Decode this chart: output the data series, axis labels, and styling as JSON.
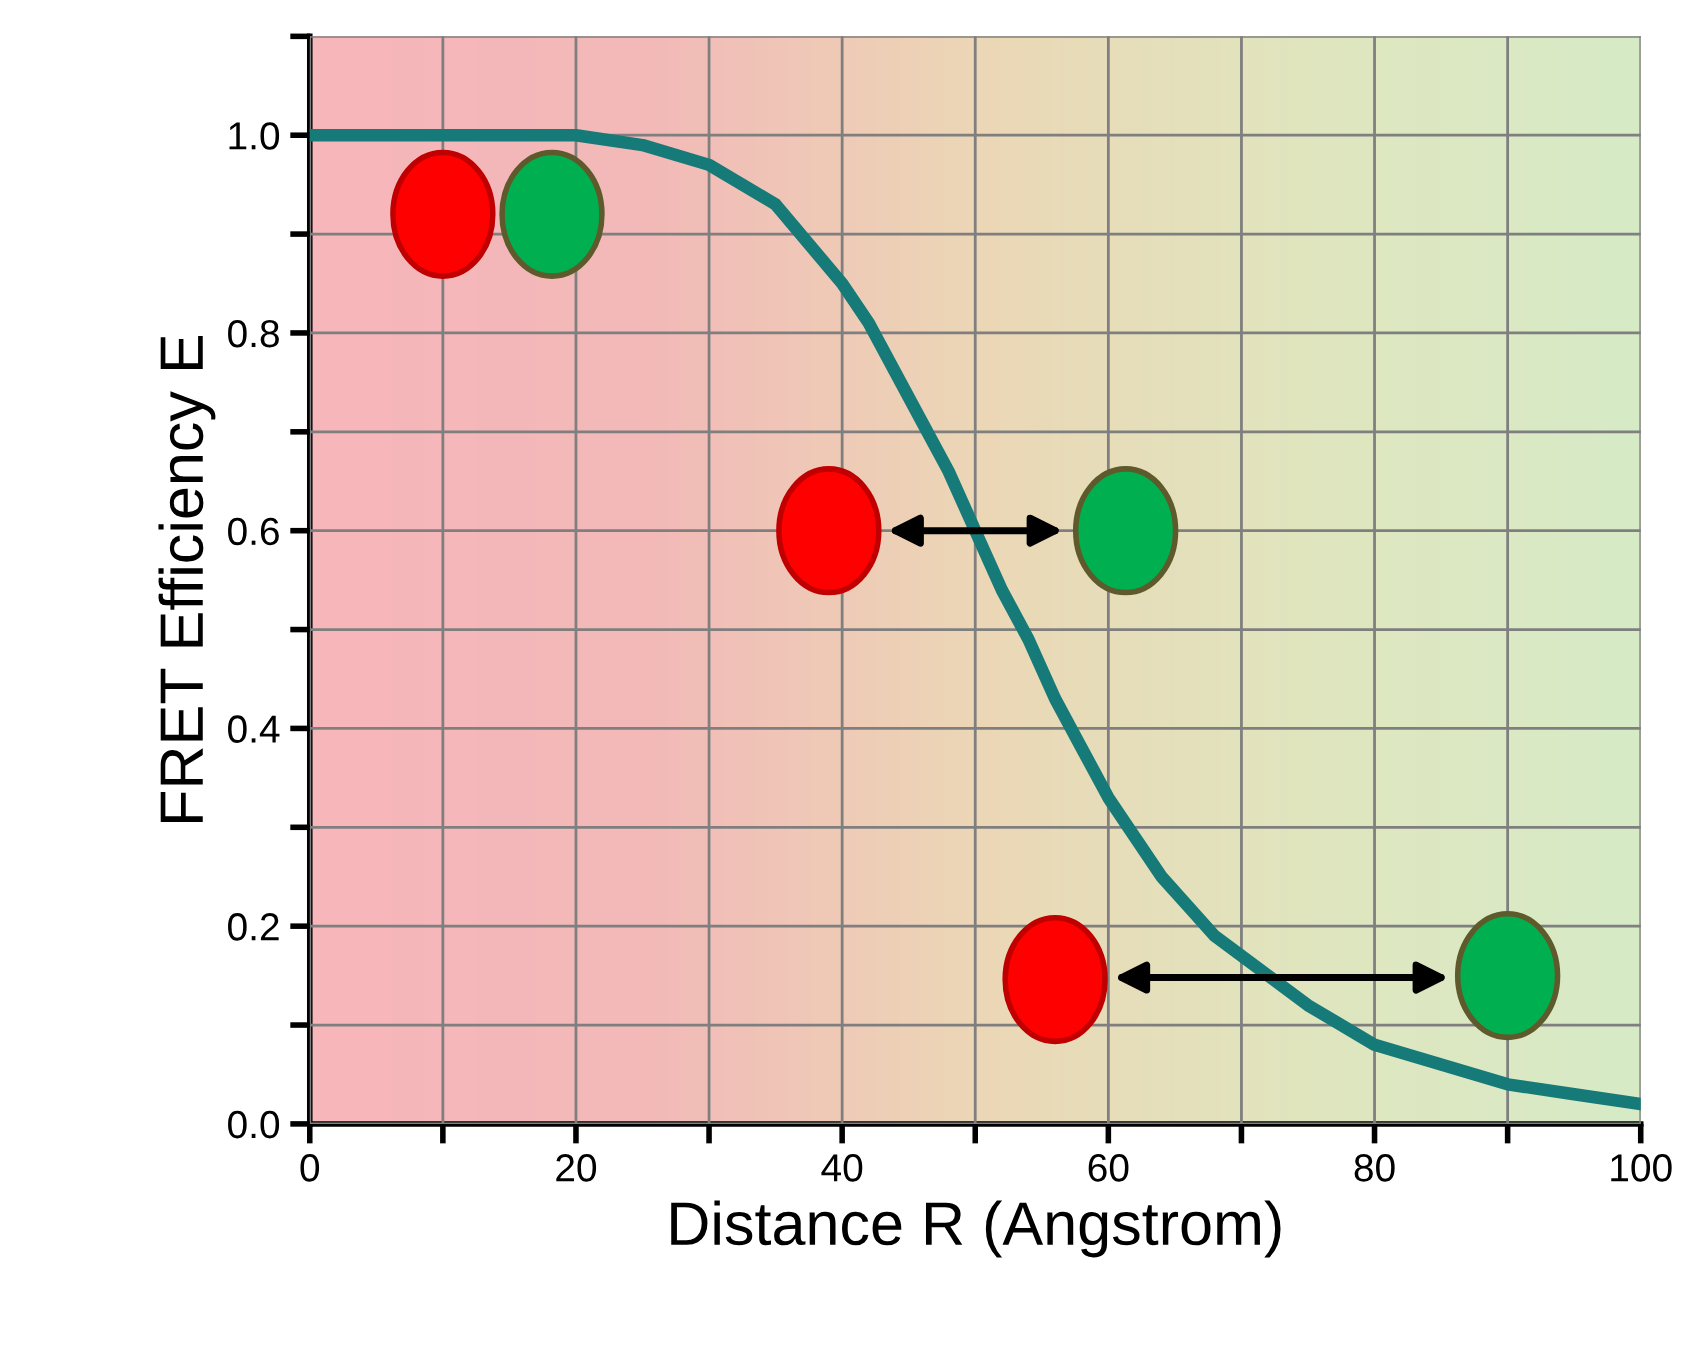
{
  "chart_data": {
    "type": "line",
    "xlabel": "Distance R (Angstrom)",
    "ylabel": "FRET Efficiency E",
    "x": [
      0,
      10,
      20,
      25,
      30,
      35,
      40,
      42,
      44,
      46,
      48,
      50,
      52,
      54,
      56,
      58,
      60,
      62,
      64,
      66,
      68,
      70,
      75,
      80,
      85,
      90,
      95,
      100
    ],
    "series": [
      {
        "color": "#167a78",
        "values": [
          1.0,
          1.0,
          1.0,
          0.99,
          0.97,
          0.93,
          0.85,
          0.81,
          0.76,
          0.71,
          0.66,
          0.6,
          0.54,
          0.49,
          0.43,
          0.38,
          0.33,
          0.29,
          0.25,
          0.22,
          0.19,
          0.17,
          0.12,
          0.08,
          0.06,
          0.04,
          0.03,
          0.02
        ]
      }
    ],
    "xlim": [
      0,
      100
    ],
    "ylim": [
      0,
      1.1
    ],
    "xticks": [
      0,
      {
        "value": 10,
        "label": null
      },
      20,
      {
        "value": 30,
        "label": null
      },
      40,
      {
        "value": 50,
        "label": null
      },
      60,
      {
        "value": 70,
        "label": null
      },
      80,
      {
        "value": 90,
        "label": null
      },
      100
    ],
    "yticks": [
      {
        "value": 0,
        "label": "0.0"
      },
      {
        "value": 0.1,
        "label": null
      },
      0.2,
      {
        "value": 0.3,
        "label": null
      },
      0.4,
      {
        "value": 0.5,
        "label": null
      },
      0.6,
      {
        "value": 0.7,
        "label": null
      },
      0.8,
      {
        "value": 0.9,
        "label": null
      },
      {
        "value": 1.0,
        "label": "1.0"
      },
      {
        "value": 1.1,
        "label": null
      }
    ],
    "grid": true,
    "marker": "none",
    "line_style": "solid",
    "legend": false
  }
}
